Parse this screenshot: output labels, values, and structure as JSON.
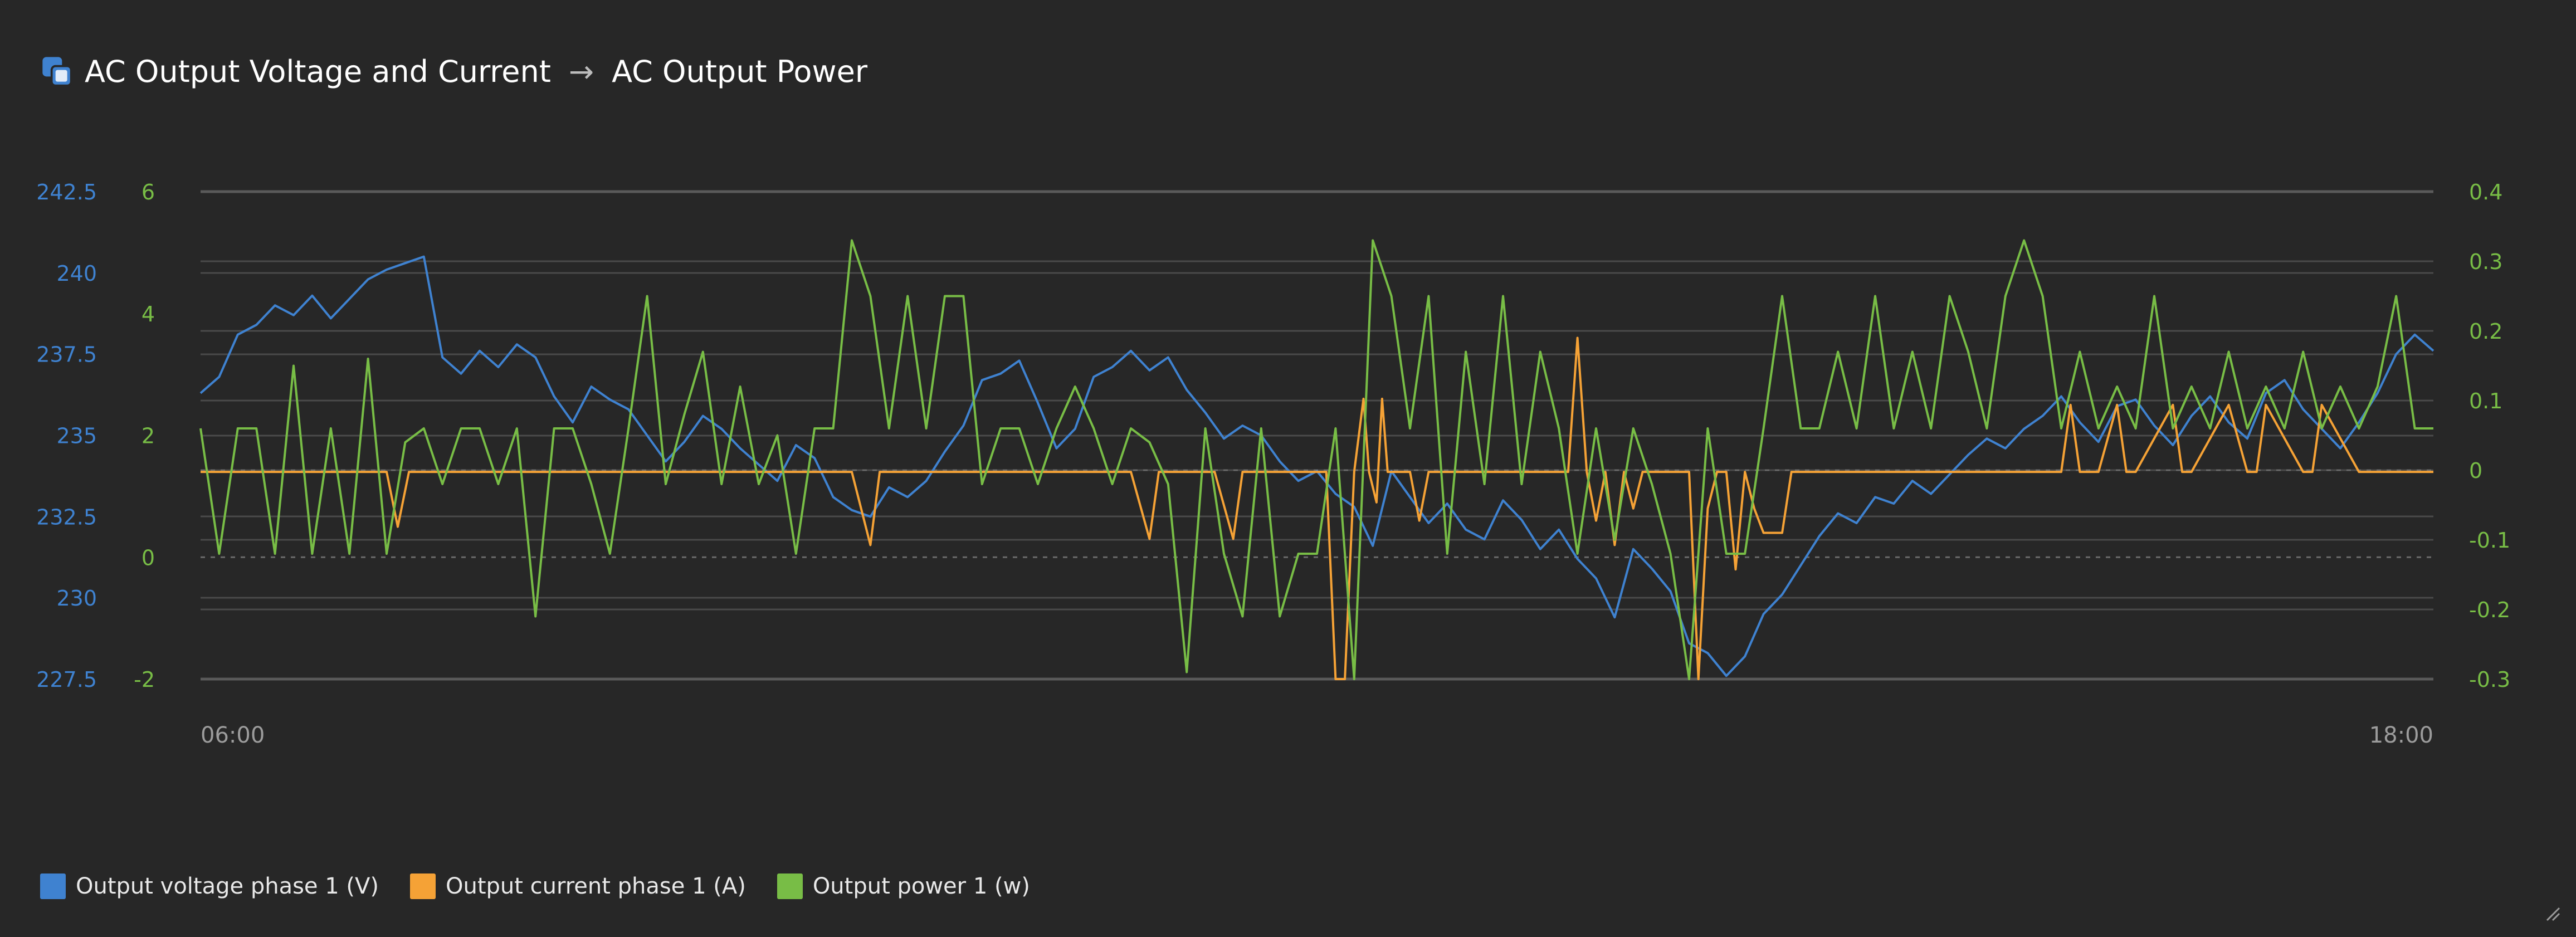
{
  "header": {
    "icon": "dashboard-widget-icon",
    "title_left": "AC Output Voltage and Current",
    "arrow": "→",
    "title_right": "AC Output Power"
  },
  "colors": {
    "background": "#272727",
    "voltage": "#3f82d0",
    "current": "#f5a236",
    "power": "#78bd46",
    "grid": "#4a4a4a"
  },
  "legend": [
    {
      "label": "Output voltage phase 1 (V)",
      "color": "#3f82d0"
    },
    {
      "label": "Output current phase 1 (A)",
      "color": "#f5a236"
    },
    {
      "label": "Output power 1 (w)",
      "color": "#78bd46"
    }
  ],
  "resize_icon": "resize-grip-icon",
  "chart_data": {
    "type": "line",
    "title": "",
    "grid": true,
    "legend_position": "bottom-left",
    "x_axis": {
      "unit": "hours",
      "min": 6,
      "max": 18,
      "ticks": [
        {
          "value": 6,
          "label": "06:00"
        },
        {
          "value": 18,
          "label": "18:00"
        }
      ]
    },
    "axes": {
      "left_voltage": {
        "min": 227.5,
        "max": 242.5,
        "ticks": [
          "242.5",
          "240",
          "237.5",
          "235",
          "232.5",
          "230",
          "227.5"
        ],
        "color": "#3f82d0"
      },
      "left_current": {
        "min": -2,
        "max": 6,
        "ticks": [
          "6",
          "4",
          "2",
          "0",
          "-2"
        ],
        "color": "#78bd46"
      },
      "right_power": {
        "min": -0.3,
        "max": 0.4,
        "ticks": [
          "0.4",
          "0.3",
          "0.2",
          "0.1",
          "0",
          "-0.1",
          "-0.2",
          "-0.3"
        ],
        "color": "#78bd46"
      }
    },
    "series": [
      {
        "name": "Output voltage phase 1 (V)",
        "axis": "left_voltage",
        "color": "#3f82d0",
        "x": [
          6.0,
          6.1,
          6.2,
          6.3,
          6.4,
          6.5,
          6.6,
          6.7,
          6.8,
          6.9,
          7.0,
          7.1,
          7.2,
          7.3,
          7.4,
          7.5,
          7.6,
          7.7,
          7.8,
          7.9,
          8.0,
          8.1,
          8.2,
          8.3,
          8.4,
          8.5,
          8.6,
          8.7,
          8.8,
          8.9,
          9.0,
          9.1,
          9.2,
          9.3,
          9.4,
          9.5,
          9.6,
          9.7,
          9.8,
          9.9,
          10.0,
          10.1,
          10.2,
          10.3,
          10.4,
          10.5,
          10.6,
          10.7,
          10.8,
          10.9,
          11.0,
          11.1,
          11.2,
          11.3,
          11.4,
          11.5,
          11.6,
          11.7,
          11.8,
          11.9,
          12.0,
          12.1,
          12.2,
          12.3,
          12.4,
          12.5,
          12.6,
          12.7,
          12.8,
          12.9,
          13.0,
          13.1,
          13.2,
          13.3,
          13.4,
          13.5,
          13.6,
          13.7,
          13.8,
          13.9,
          14.0,
          14.1,
          14.2,
          14.3,
          14.4,
          14.5,
          14.6,
          14.7,
          14.8,
          14.9,
          15.0,
          15.1,
          15.2,
          15.3,
          15.4,
          15.5,
          15.6,
          15.7,
          15.8,
          15.9,
          16.0,
          16.1,
          16.2,
          16.3,
          16.4,
          16.5,
          16.6,
          16.7,
          16.8,
          16.9,
          17.0,
          17.1,
          17.2,
          17.3,
          17.4,
          17.5,
          17.6,
          17.7,
          17.8,
          17.9,
          18.0
        ],
        "values": [
          236.3,
          236.8,
          238.1,
          238.4,
          239.0,
          238.7,
          239.3,
          238.6,
          239.2,
          239.8,
          240.1,
          240.3,
          240.5,
          237.4,
          236.9,
          237.6,
          237.1,
          237.8,
          237.4,
          236.2,
          235.4,
          236.5,
          236.1,
          235.8,
          235.0,
          234.2,
          234.8,
          235.6,
          235.2,
          234.6,
          234.1,
          233.6,
          234.7,
          234.3,
          233.1,
          232.7,
          232.5,
          233.4,
          233.1,
          233.6,
          234.5,
          235.3,
          236.7,
          236.9,
          237.3,
          236.0,
          234.6,
          235.2,
          236.8,
          237.1,
          237.6,
          237.0,
          237.4,
          236.4,
          235.7,
          234.9,
          235.3,
          235.0,
          234.2,
          233.6,
          233.9,
          233.2,
          232.8,
          231.6,
          233.9,
          233.1,
          232.3,
          232.9,
          232.1,
          231.8,
          233.0,
          232.4,
          231.5,
          232.1,
          231.2,
          230.6,
          229.4,
          231.5,
          230.9,
          230.2,
          228.6,
          228.3,
          227.6,
          228.2,
          229.5,
          230.1,
          231.0,
          231.9,
          232.6,
          232.3,
          233.1,
          232.9,
          233.6,
          233.2,
          233.8,
          234.4,
          234.9,
          234.6,
          235.2,
          235.6,
          236.2,
          235.4,
          234.8,
          235.9,
          236.1,
          235.3,
          234.7,
          235.6,
          236.2,
          235.4,
          234.9,
          236.3,
          236.7,
          235.8,
          235.2,
          234.6,
          235.4,
          236.3,
          237.5,
          238.1,
          237.6
        ]
      },
      {
        "name": "Output current phase 1 (A)",
        "axis": "left_current",
        "color": "#f5a236",
        "x": [
          6.0,
          7.0,
          7.06,
          7.12,
          7.18,
          9.5,
          9.6,
          9.65,
          9.75,
          11.0,
          11.1,
          11.15,
          11.25,
          11.45,
          11.55,
          11.6,
          11.7,
          12.05,
          12.1,
          12.15,
          12.2,
          12.25,
          12.28,
          12.32,
          12.35,
          12.38,
          12.45,
          12.5,
          12.55,
          12.6,
          12.65,
          13.3,
          13.35,
          13.4,
          13.45,
          13.5,
          13.55,
          13.6,
          13.65,
          13.7,
          13.75,
          14.0,
          14.05,
          14.1,
          14.15,
          14.2,
          14.25,
          14.3,
          14.35,
          14.4,
          14.45,
          14.5,
          14.55,
          14.6,
          16.0,
          16.05,
          16.1,
          16.2,
          16.3,
          16.35,
          16.4,
          16.6,
          16.65,
          16.7,
          16.9,
          17.0,
          17.05,
          17.1,
          17.3,
          17.35,
          17.4,
          17.6,
          18.0
        ],
        "values": [
          1.4,
          1.4,
          0.5,
          1.4,
          1.4,
          1.4,
          0.2,
          1.4,
          1.4,
          1.4,
          0.3,
          1.4,
          1.4,
          1.4,
          0.3,
          1.4,
          1.4,
          1.4,
          -2.0,
          -2.0,
          1.4,
          2.6,
          1.4,
          0.9,
          2.6,
          1.4,
          1.4,
          1.4,
          0.6,
          1.4,
          1.4,
          1.4,
          1.4,
          3.6,
          1.4,
          0.6,
          1.4,
          0.2,
          1.4,
          0.8,
          1.4,
          1.4,
          -2.0,
          0.8,
          1.4,
          1.4,
          -0.2,
          1.4,
          0.8,
          0.4,
          0.4,
          0.4,
          1.4,
          1.4,
          1.4,
          2.5,
          1.4,
          1.4,
          2.5,
          1.4,
          1.4,
          2.5,
          1.4,
          1.4,
          2.5,
          1.4,
          1.4,
          2.5,
          1.4,
          1.4,
          2.5,
          1.4,
          1.4
        ]
      },
      {
        "name": "Output power 1 (w)",
        "axis": "right_power",
        "color": "#78bd46",
        "x": [
          6.0,
          6.1,
          6.2,
          6.3,
          6.4,
          6.5,
          6.6,
          6.7,
          6.8,
          6.9,
          7.0,
          7.1,
          7.2,
          7.3,
          7.4,
          7.5,
          7.6,
          7.7,
          7.8,
          7.9,
          8.0,
          8.1,
          8.2,
          8.3,
          8.4,
          8.5,
          8.6,
          8.7,
          8.8,
          8.9,
          9.0,
          9.1,
          9.2,
          9.3,
          9.4,
          9.5,
          9.6,
          9.7,
          9.8,
          9.9,
          10.0,
          10.1,
          10.2,
          10.3,
          10.4,
          10.5,
          10.6,
          10.7,
          10.8,
          10.9,
          11.0,
          11.1,
          11.2,
          11.3,
          11.4,
          11.5,
          11.6,
          11.7,
          11.8,
          11.9,
          12.0,
          12.1,
          12.2,
          12.3,
          12.4,
          12.5,
          12.6,
          12.7,
          12.8,
          12.9,
          13.0,
          13.1,
          13.2,
          13.3,
          13.4,
          13.5,
          13.6,
          13.7,
          13.8,
          13.9,
          14.0,
          14.1,
          14.2,
          14.3,
          14.4,
          14.5,
          14.6,
          14.7,
          14.8,
          14.9,
          15.0,
          15.1,
          15.2,
          15.3,
          15.4,
          15.5,
          15.6,
          15.7,
          15.8,
          15.9,
          16.0,
          16.1,
          16.2,
          16.3,
          16.4,
          16.5,
          16.6,
          16.7,
          16.8,
          16.9,
          17.0,
          17.1,
          17.2,
          17.3,
          17.4,
          17.5,
          17.6,
          17.7,
          17.8,
          17.9,
          18.0
        ],
        "values": [
          0.06,
          -0.12,
          0.06,
          0.06,
          -0.12,
          0.15,
          -0.12,
          0.06,
          -0.12,
          0.16,
          -0.12,
          0.04,
          0.06,
          -0.02,
          0.06,
          0.06,
          -0.02,
          0.06,
          -0.21,
          0.06,
          0.06,
          -0.02,
          -0.12,
          0.06,
          0.25,
          -0.02,
          0.08,
          0.17,
          -0.02,
          0.12,
          -0.02,
          0.05,
          -0.12,
          0.06,
          0.06,
          0.33,
          0.25,
          0.06,
          0.25,
          0.06,
          0.25,
          0.25,
          -0.02,
          0.06,
          0.06,
          -0.02,
          0.06,
          0.12,
          0.06,
          -0.02,
          0.06,
          0.04,
          -0.02,
          -0.29,
          0.06,
          -0.12,
          -0.21,
          0.06,
          -0.21,
          -0.12,
          -0.12,
          0.06,
          -0.3,
          0.33,
          0.25,
          0.06,
          0.25,
          -0.12,
          0.17,
          -0.02,
          0.25,
          -0.02,
          0.17,
          0.06,
          -0.12,
          0.06,
          -0.1,
          0.06,
          -0.02,
          -0.12,
          -0.3,
          0.06,
          -0.12,
          -0.12,
          0.06,
          0.25,
          0.06,
          0.06,
          0.17,
          0.06,
          0.25,
          0.06,
          0.17,
          0.06,
          0.25,
          0.17,
          0.06,
          0.25,
          0.33,
          0.25,
          0.06,
          0.17,
          0.06,
          0.12,
          0.06,
          0.25,
          0.06,
          0.12,
          0.06,
          0.17,
          0.06,
          0.12,
          0.06,
          0.17,
          0.06,
          0.12,
          0.06,
          0.12,
          0.25,
          0.06,
          0.06
        ]
      }
    ]
  }
}
